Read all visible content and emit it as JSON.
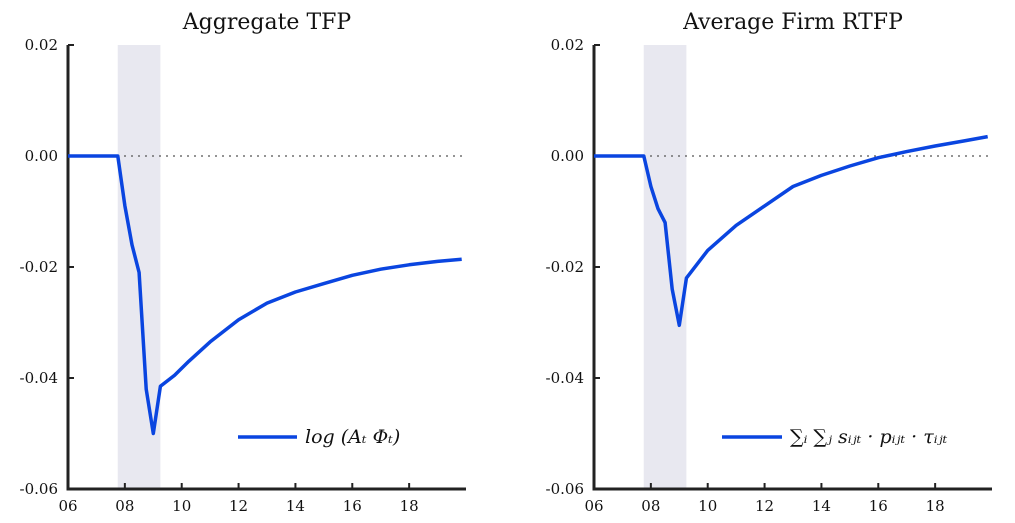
{
  "chart_data": [
    {
      "type": "line",
      "title": "Aggregate TFP",
      "xlabel": "",
      "ylabel": "",
      "xlim": [
        6,
        20
      ],
      "ylim": [
        -0.06,
        0.02
      ],
      "x_ticks": [
        6,
        8,
        10,
        12,
        14,
        16,
        18
      ],
      "x_tick_labels": [
        "06",
        "08",
        "10",
        "12",
        "14",
        "16",
        "18"
      ],
      "y_ticks": [
        0.02,
        0.0,
        -0.02,
        -0.04,
        -0.06
      ],
      "y_tick_labels": [
        "0.02",
        "0.00",
        "-0.02",
        "-0.04",
        "-0.06"
      ],
      "shade": [
        7.75,
        9.25
      ],
      "zero_line": true,
      "legend_position": "bottom-right",
      "series": [
        {
          "name": "log (A_t Φ_t)",
          "legend_label": "log (Aₜ Φₜ)",
          "color": "#0a45e0",
          "x": [
            6.0,
            7.75,
            8.0,
            8.25,
            8.5,
            8.75,
            9.0,
            9.25,
            9.75,
            10.25,
            11.0,
            12.0,
            13.0,
            14.0,
            15.0,
            16.0,
            17.0,
            18.0,
            19.0,
            19.85
          ],
          "y": [
            0.0,
            0.0,
            -0.009,
            -0.016,
            -0.021,
            -0.042,
            -0.05,
            -0.0415,
            -0.0395,
            -0.037,
            -0.0335,
            -0.0295,
            -0.0265,
            -0.0245,
            -0.023,
            -0.0215,
            -0.0204,
            -0.0196,
            -0.019,
            -0.0186
          ]
        }
      ]
    },
    {
      "type": "line",
      "title": "Average Firm RTFP",
      "xlabel": "",
      "ylabel": "",
      "xlim": [
        6,
        20
      ],
      "ylim": [
        -0.06,
        0.02
      ],
      "x_ticks": [
        6,
        8,
        10,
        12,
        14,
        16,
        18
      ],
      "x_tick_labels": [
        "06",
        "08",
        "10",
        "12",
        "14",
        "16",
        "18"
      ],
      "y_ticks": [
        0.02,
        0.0,
        -0.02,
        -0.04,
        -0.06
      ],
      "y_tick_labels": [
        "0.02",
        "0.00",
        "-0.02",
        "-0.04",
        "-0.06"
      ],
      "shade": [
        7.75,
        9.25
      ],
      "zero_line": true,
      "legend_position": "bottom-right",
      "series": [
        {
          "name": "∑_i ∑_j s_ijt · p_ijt · τ_ijt",
          "legend_label": "∑ᵢ ∑ⱼ sᵢⱼₜ · pᵢⱼₜ · τᵢⱼₜ",
          "color": "#0a45e0",
          "x": [
            6.0,
            7.75,
            8.0,
            8.25,
            8.5,
            8.75,
            9.0,
            9.25,
            10.0,
            11.0,
            12.0,
            13.0,
            14.0,
            15.0,
            16.0,
            17.0,
            18.0,
            19.0,
            19.85
          ],
          "y": [
            0.0,
            0.0,
            -0.0055,
            -0.0095,
            -0.012,
            -0.024,
            -0.0305,
            -0.022,
            -0.017,
            -0.0125,
            -0.009,
            -0.0055,
            -0.0035,
            -0.0018,
            -0.0003,
            0.0008,
            0.0018,
            0.0027,
            0.0035
          ]
        }
      ]
    }
  ]
}
